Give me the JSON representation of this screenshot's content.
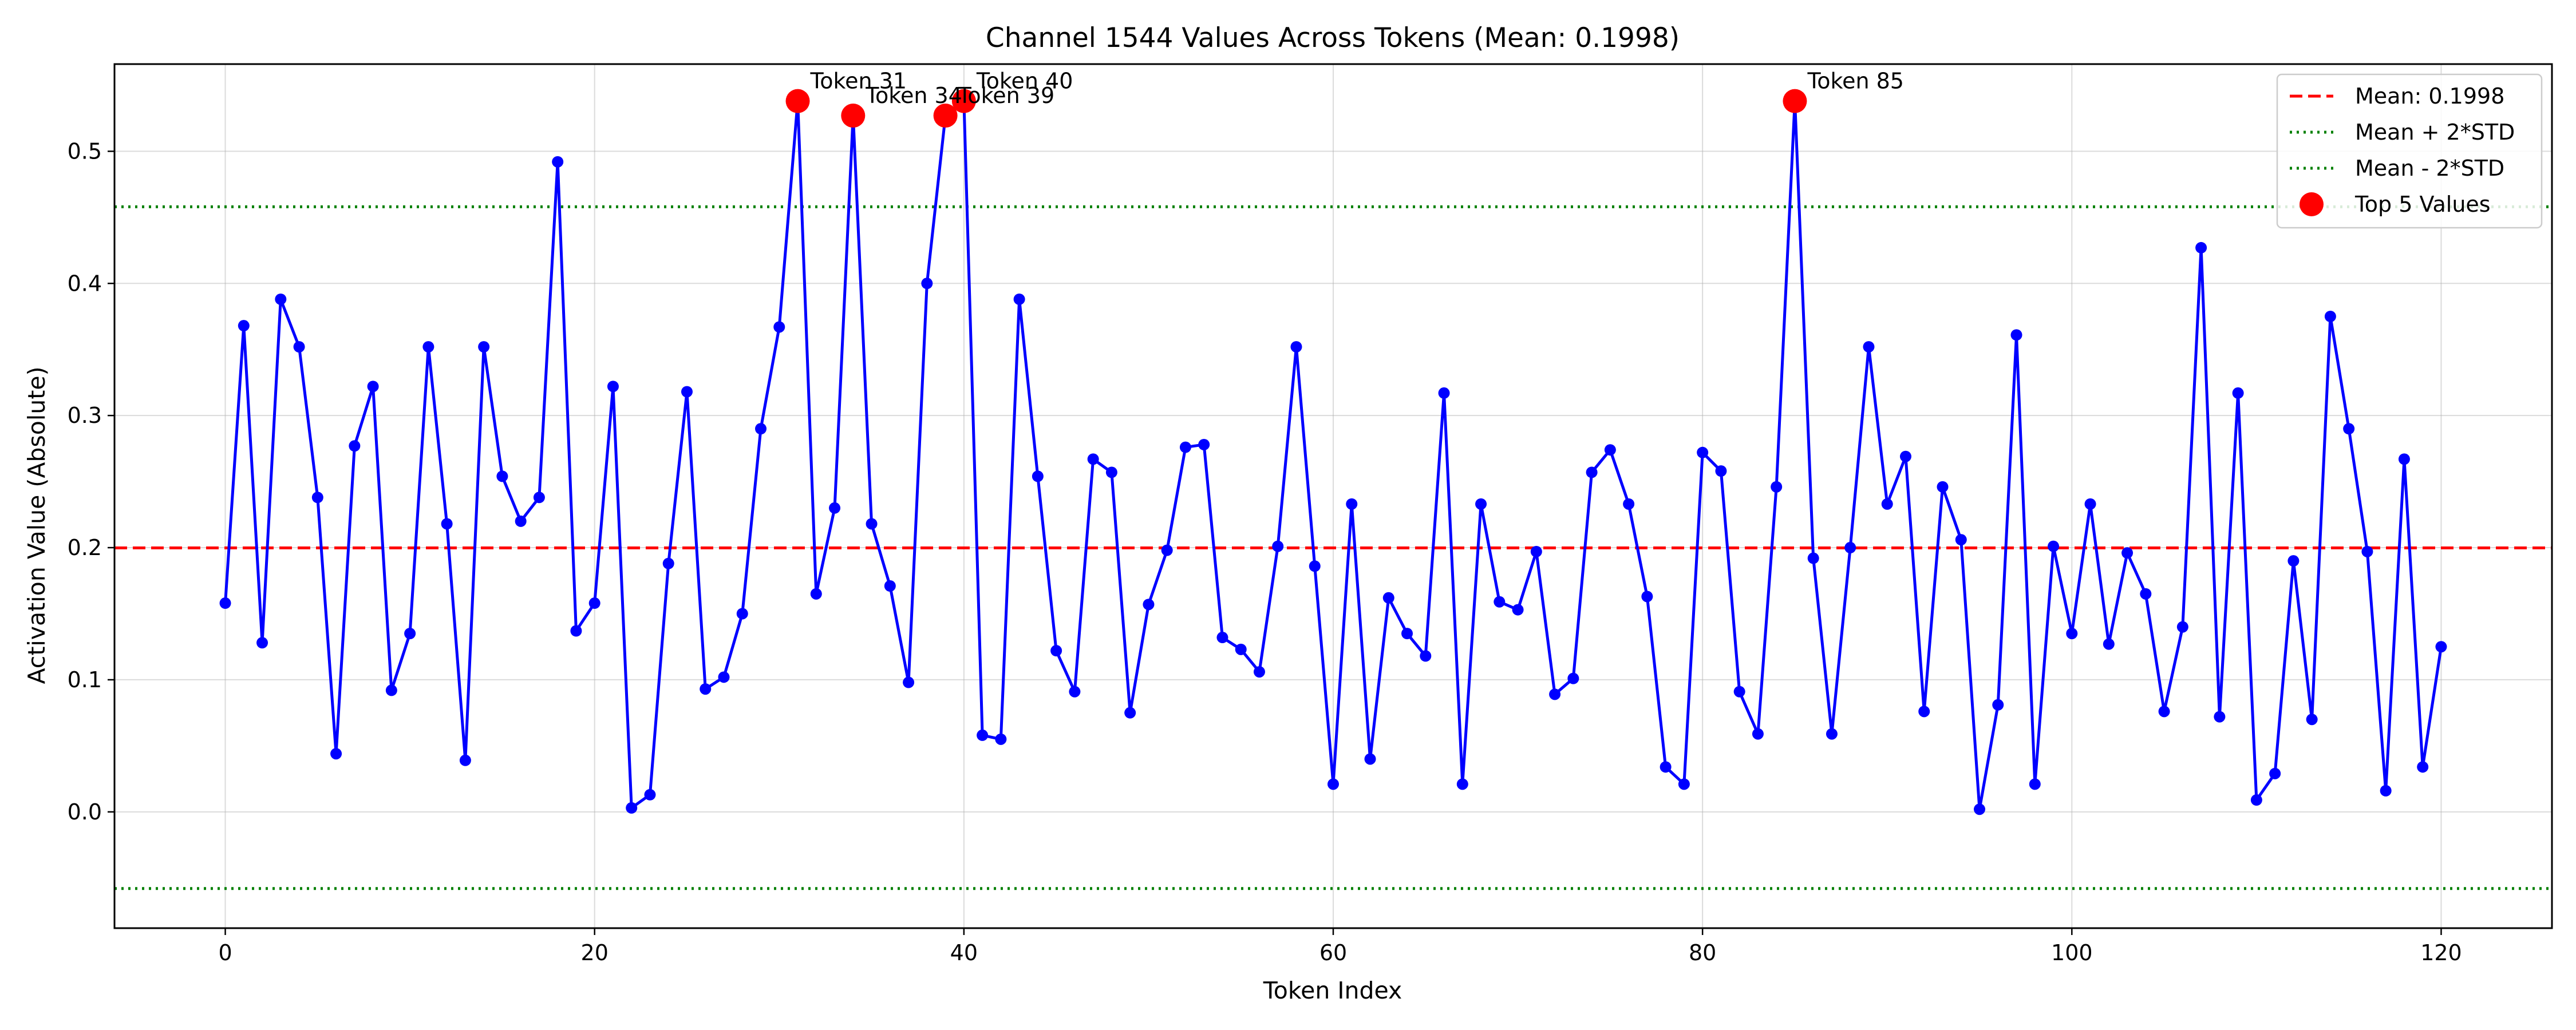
{
  "chart_data": {
    "type": "line",
    "title": "Channel 1544 Values Across Tokens (Mean: 0.1998)",
    "xlabel": "Token Index",
    "ylabel": "Activation Value (Absolute)",
    "xlim": [
      -6,
      126
    ],
    "ylim": [
      -0.088,
      0.566
    ],
    "grid": true,
    "legend_position": "top-right",
    "x_ticks": [
      {
        "value": 0,
        "label": "0"
      },
      {
        "value": 20,
        "label": "20"
      },
      {
        "value": 40,
        "label": "40"
      },
      {
        "value": 60,
        "label": "60"
      },
      {
        "value": 80,
        "label": "80"
      },
      {
        "value": 100,
        "label": "100"
      },
      {
        "value": 120,
        "label": "120"
      }
    ],
    "y_ticks": [
      {
        "value": 0.0,
        "label": "0.0"
      },
      {
        "value": 0.1,
        "label": "0.1"
      },
      {
        "value": 0.2,
        "label": "0.2"
      },
      {
        "value": 0.3,
        "label": "0.3"
      },
      {
        "value": 0.4,
        "label": "0.4"
      },
      {
        "value": 0.5,
        "label": "0.5"
      }
    ],
    "series": [
      {
        "color": "#0000ff",
        "values": [
          0.158,
          0.368,
          0.128,
          0.388,
          0.352,
          0.238,
          0.044,
          0.277,
          0.322,
          0.092,
          0.135,
          0.352,
          0.218,
          0.039,
          0.352,
          0.254,
          0.22,
          0.238,
          0.492,
          0.137,
          0.158,
          0.322,
          0.003,
          0.013,
          0.188,
          0.318,
          0.093,
          0.102,
          0.15,
          0.29,
          0.367,
          0.538,
          0.165,
          0.23,
          0.527,
          0.218,
          0.171,
          0.098,
          0.4,
          0.527,
          0.538,
          0.058,
          0.055,
          0.388,
          0.254,
          0.122,
          0.091,
          0.267,
          0.257,
          0.075,
          0.157,
          0.198,
          0.276,
          0.278,
          0.132,
          0.123,
          0.106,
          0.201,
          0.352,
          0.186,
          0.021,
          0.233,
          0.04,
          0.162,
          0.135,
          0.118,
          0.317,
          0.021,
          0.233,
          0.159,
          0.153,
          0.197,
          0.089,
          0.101,
          0.257,
          0.274,
          0.233,
          0.163,
          0.034,
          0.021,
          0.272,
          0.258,
          0.091,
          0.059,
          0.246,
          0.538,
          0.192,
          0.059,
          0.2,
          0.352,
          0.233,
          0.269,
          0.076,
          0.246,
          0.206,
          0.002,
          0.081,
          0.361,
          0.021,
          0.201,
          0.135,
          0.233,
          0.127,
          0.196,
          0.165,
          0.076,
          0.14,
          0.427,
          0.072,
          0.317,
          0.009,
          0.029,
          0.19,
          0.07,
          0.375,
          0.29,
          0.197,
          0.016,
          0.267,
          0.034,
          0.125
        ]
      }
    ],
    "reference_lines": [
      {
        "name": "Mean: 0.1998",
        "value": 0.1998,
        "color": "#ff0000",
        "style": "dashed"
      },
      {
        "name": "Mean + 2*STD",
        "value": 0.458,
        "color": "#008000",
        "style": "dotted"
      },
      {
        "name": "Mean - 2*STD",
        "value": -0.058,
        "color": "#008000",
        "style": "dotted"
      }
    ],
    "top_values": {
      "name": "Top 5 Values",
      "color": "#ff0000",
      "points": [
        {
          "x": 31,
          "y": 0.538,
          "label": "Token 31"
        },
        {
          "x": 34,
          "y": 0.527,
          "label": "Token 34"
        },
        {
          "x": 39,
          "y": 0.527,
          "label": "Token 39"
        },
        {
          "x": 40,
          "y": 0.538,
          "label": "Token 40"
        },
        {
          "x": 85,
          "y": 0.538,
          "label": "Token 85"
        }
      ]
    }
  }
}
